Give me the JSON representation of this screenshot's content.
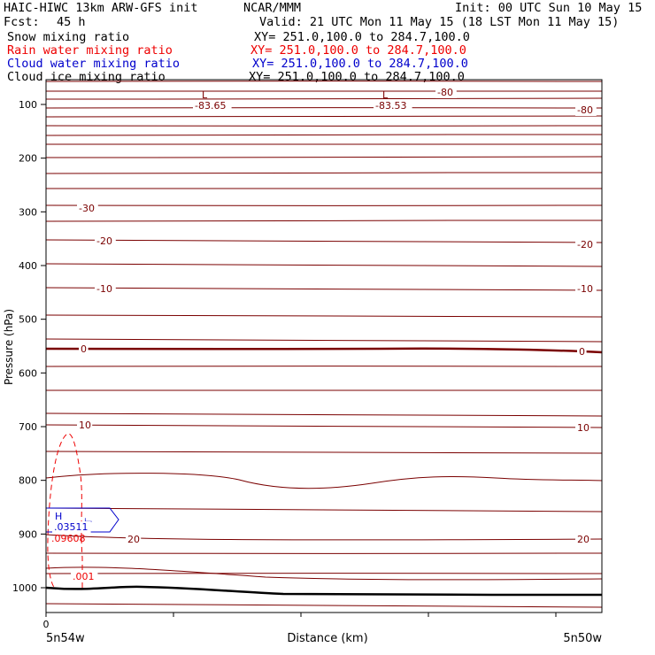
{
  "header": {
    "model": "HAIC-HIWC 13km ARW-GFS init",
    "org": "NCAR/MMM",
    "init": "Init: 00 UTC Sun 10 May 15",
    "fcst_label": "Fcst:",
    "fcst_value": "45 h",
    "valid": "Valid: 21 UTC Mon 11 May 15 (18 LST Mon 11 May 15)"
  },
  "legend": [
    {
      "label": "Snow mixing ratio",
      "xy": "XY= 251.0,100.0 to 284.7,100.0",
      "color": "#000000"
    },
    {
      "label": "Rain water mixing ratio",
      "xy": "XY= 251.0,100.0 to 284.7,100.0",
      "color": "#ee0000"
    },
    {
      "label": "Cloud water mixing ratio",
      "xy": "XY= 251.0,100.0 to 284.7,100.0",
      "color": "#0000cc"
    },
    {
      "label": "Cloud ice mixing ratio",
      "xy": "XY= 251.0,100.0 to 284.7,100.0",
      "color": "#000000"
    }
  ],
  "chart_data": {
    "type": "line",
    "xlabel": "Distance (km)",
    "ylabel": "Pressure (hPa)",
    "x_ticks": [
      "0"
    ],
    "x_endpoint_labels": [
      "5n54w",
      "5n50w"
    ],
    "y_ticks": [
      100,
      200,
      300,
      400,
      500,
      600,
      700,
      800,
      900,
      1000
    ],
    "ylim": [
      1050,
      60
    ],
    "contour_color": "#7a0000",
    "rain_color": "#ee0000",
    "cloud_color": "#0000cc",
    "isotherm_labels": [
      "-80",
      "-30",
      "-20",
      "-10",
      "0",
      "10",
      "20"
    ],
    "min_labels": [
      "L",
      "-83.65",
      "L",
      "-83.53"
    ],
    "max_labels": [
      "H",
      ".03511",
      ".09608",
      ".001"
    ]
  }
}
